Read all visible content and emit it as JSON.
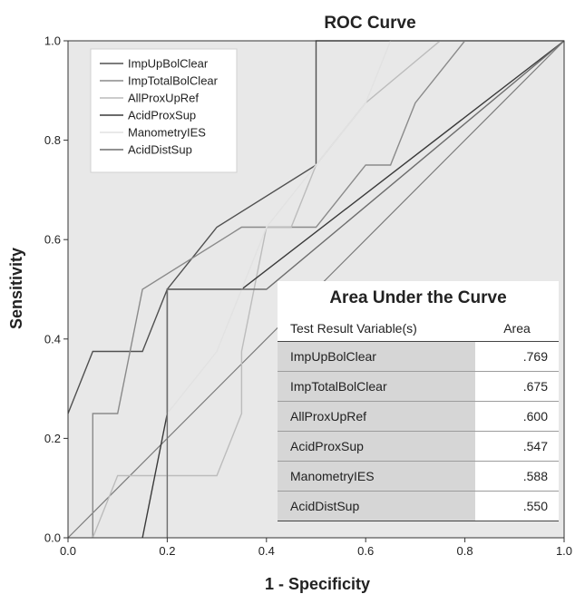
{
  "chart_data": {
    "type": "line",
    "title": "ROC Curve",
    "xlabel": "1 - Specificity",
    "ylabel": "Sensitivity",
    "xlim": [
      0,
      1
    ],
    "ylim": [
      0,
      1
    ],
    "x_ticks": [
      "0.0",
      "0.2",
      "0.4",
      "0.6",
      "0.8",
      "1.0"
    ],
    "y_ticks": [
      "0.0",
      "0.2",
      "0.4",
      "0.6",
      "0.8",
      "1.0"
    ],
    "grid": false,
    "legend_position": "top-left",
    "series": [
      {
        "name": "ImpUpBolClear",
        "color": "#505050",
        "points": [
          [
            0,
            0.25
          ],
          [
            0.05,
            0.375
          ],
          [
            0.15,
            0.375
          ],
          [
            0.2,
            0.5
          ],
          [
            0.3,
            0.625
          ],
          [
            0.5,
            0.75
          ],
          [
            0.5,
            1.0
          ],
          [
            1.0,
            1.0
          ]
        ]
      },
      {
        "name": "ImpTotalBolClear",
        "color": "#8a8a8a",
        "points": [
          [
            0.05,
            0
          ],
          [
            0.05,
            0.25
          ],
          [
            0.1,
            0.25
          ],
          [
            0.15,
            0.5
          ],
          [
            0.35,
            0.625
          ],
          [
            0.5,
            0.625
          ],
          [
            0.6,
            0.75
          ],
          [
            0.65,
            0.75
          ],
          [
            0.7,
            0.875
          ],
          [
            0.8,
            1.0
          ],
          [
            1.0,
            1.0
          ]
        ]
      },
      {
        "name": "AllProxUpRef",
        "color": "#bcbcbc",
        "points": [
          [
            0.05,
            0
          ],
          [
            0.1,
            0.125
          ],
          [
            0.3,
            0.125
          ],
          [
            0.35,
            0.25
          ],
          [
            0.35,
            0.375
          ],
          [
            0.4,
            0.625
          ],
          [
            0.45,
            0.625
          ],
          [
            0.5,
            0.75
          ],
          [
            0.6,
            0.875
          ],
          [
            0.75,
            1.0
          ],
          [
            1.0,
            1.0
          ]
        ]
      },
      {
        "name": "AcidProxSup",
        "color": "#3a3a3a",
        "points": [
          [
            0.15,
            0
          ],
          [
            0.2,
            0.25
          ],
          [
            0.2,
            0.5
          ],
          [
            0.35,
            0.5
          ],
          [
            0.35,
            0.5
          ],
          [
            1.0,
            1.0
          ]
        ]
      },
      {
        "name": "ManometryIES",
        "color": "#e2e2e2",
        "points": [
          [
            0.2,
            0
          ],
          [
            0.2,
            0.25
          ],
          [
            0.3,
            0.375
          ],
          [
            0.4,
            0.625
          ],
          [
            0.6,
            0.875
          ],
          [
            0.65,
            1.0
          ],
          [
            1.0,
            1.0
          ]
        ]
      },
      {
        "name": "AcidDistSup",
        "color": "#6e6e6e",
        "points": [
          [
            0.2,
            0
          ],
          [
            0.2,
            0.5
          ],
          [
            0.4,
            0.5
          ],
          [
            1.0,
            1.0
          ]
        ]
      }
    ]
  },
  "auc_table": {
    "title": "Area Under the Curve",
    "header_variable": "Test Result Variable(s)",
    "header_area": "Area",
    "rows": [
      {
        "variable": "ImpUpBolClear",
        "area": ".769"
      },
      {
        "variable": "ImpTotalBolClear",
        "area": ".675"
      },
      {
        "variable": "AllProxUpRef",
        "area": ".600"
      },
      {
        "variable": "AcidProxSup",
        "area": ".547"
      },
      {
        "variable": "ManometryIES",
        "area": ".588"
      },
      {
        "variable": "AcidDistSup",
        "area": ".550"
      }
    ]
  },
  "colors": {
    "plot_background": "#e8e8e8",
    "legend_background": "#ffffff",
    "reference_line": "#7a7a7a"
  }
}
